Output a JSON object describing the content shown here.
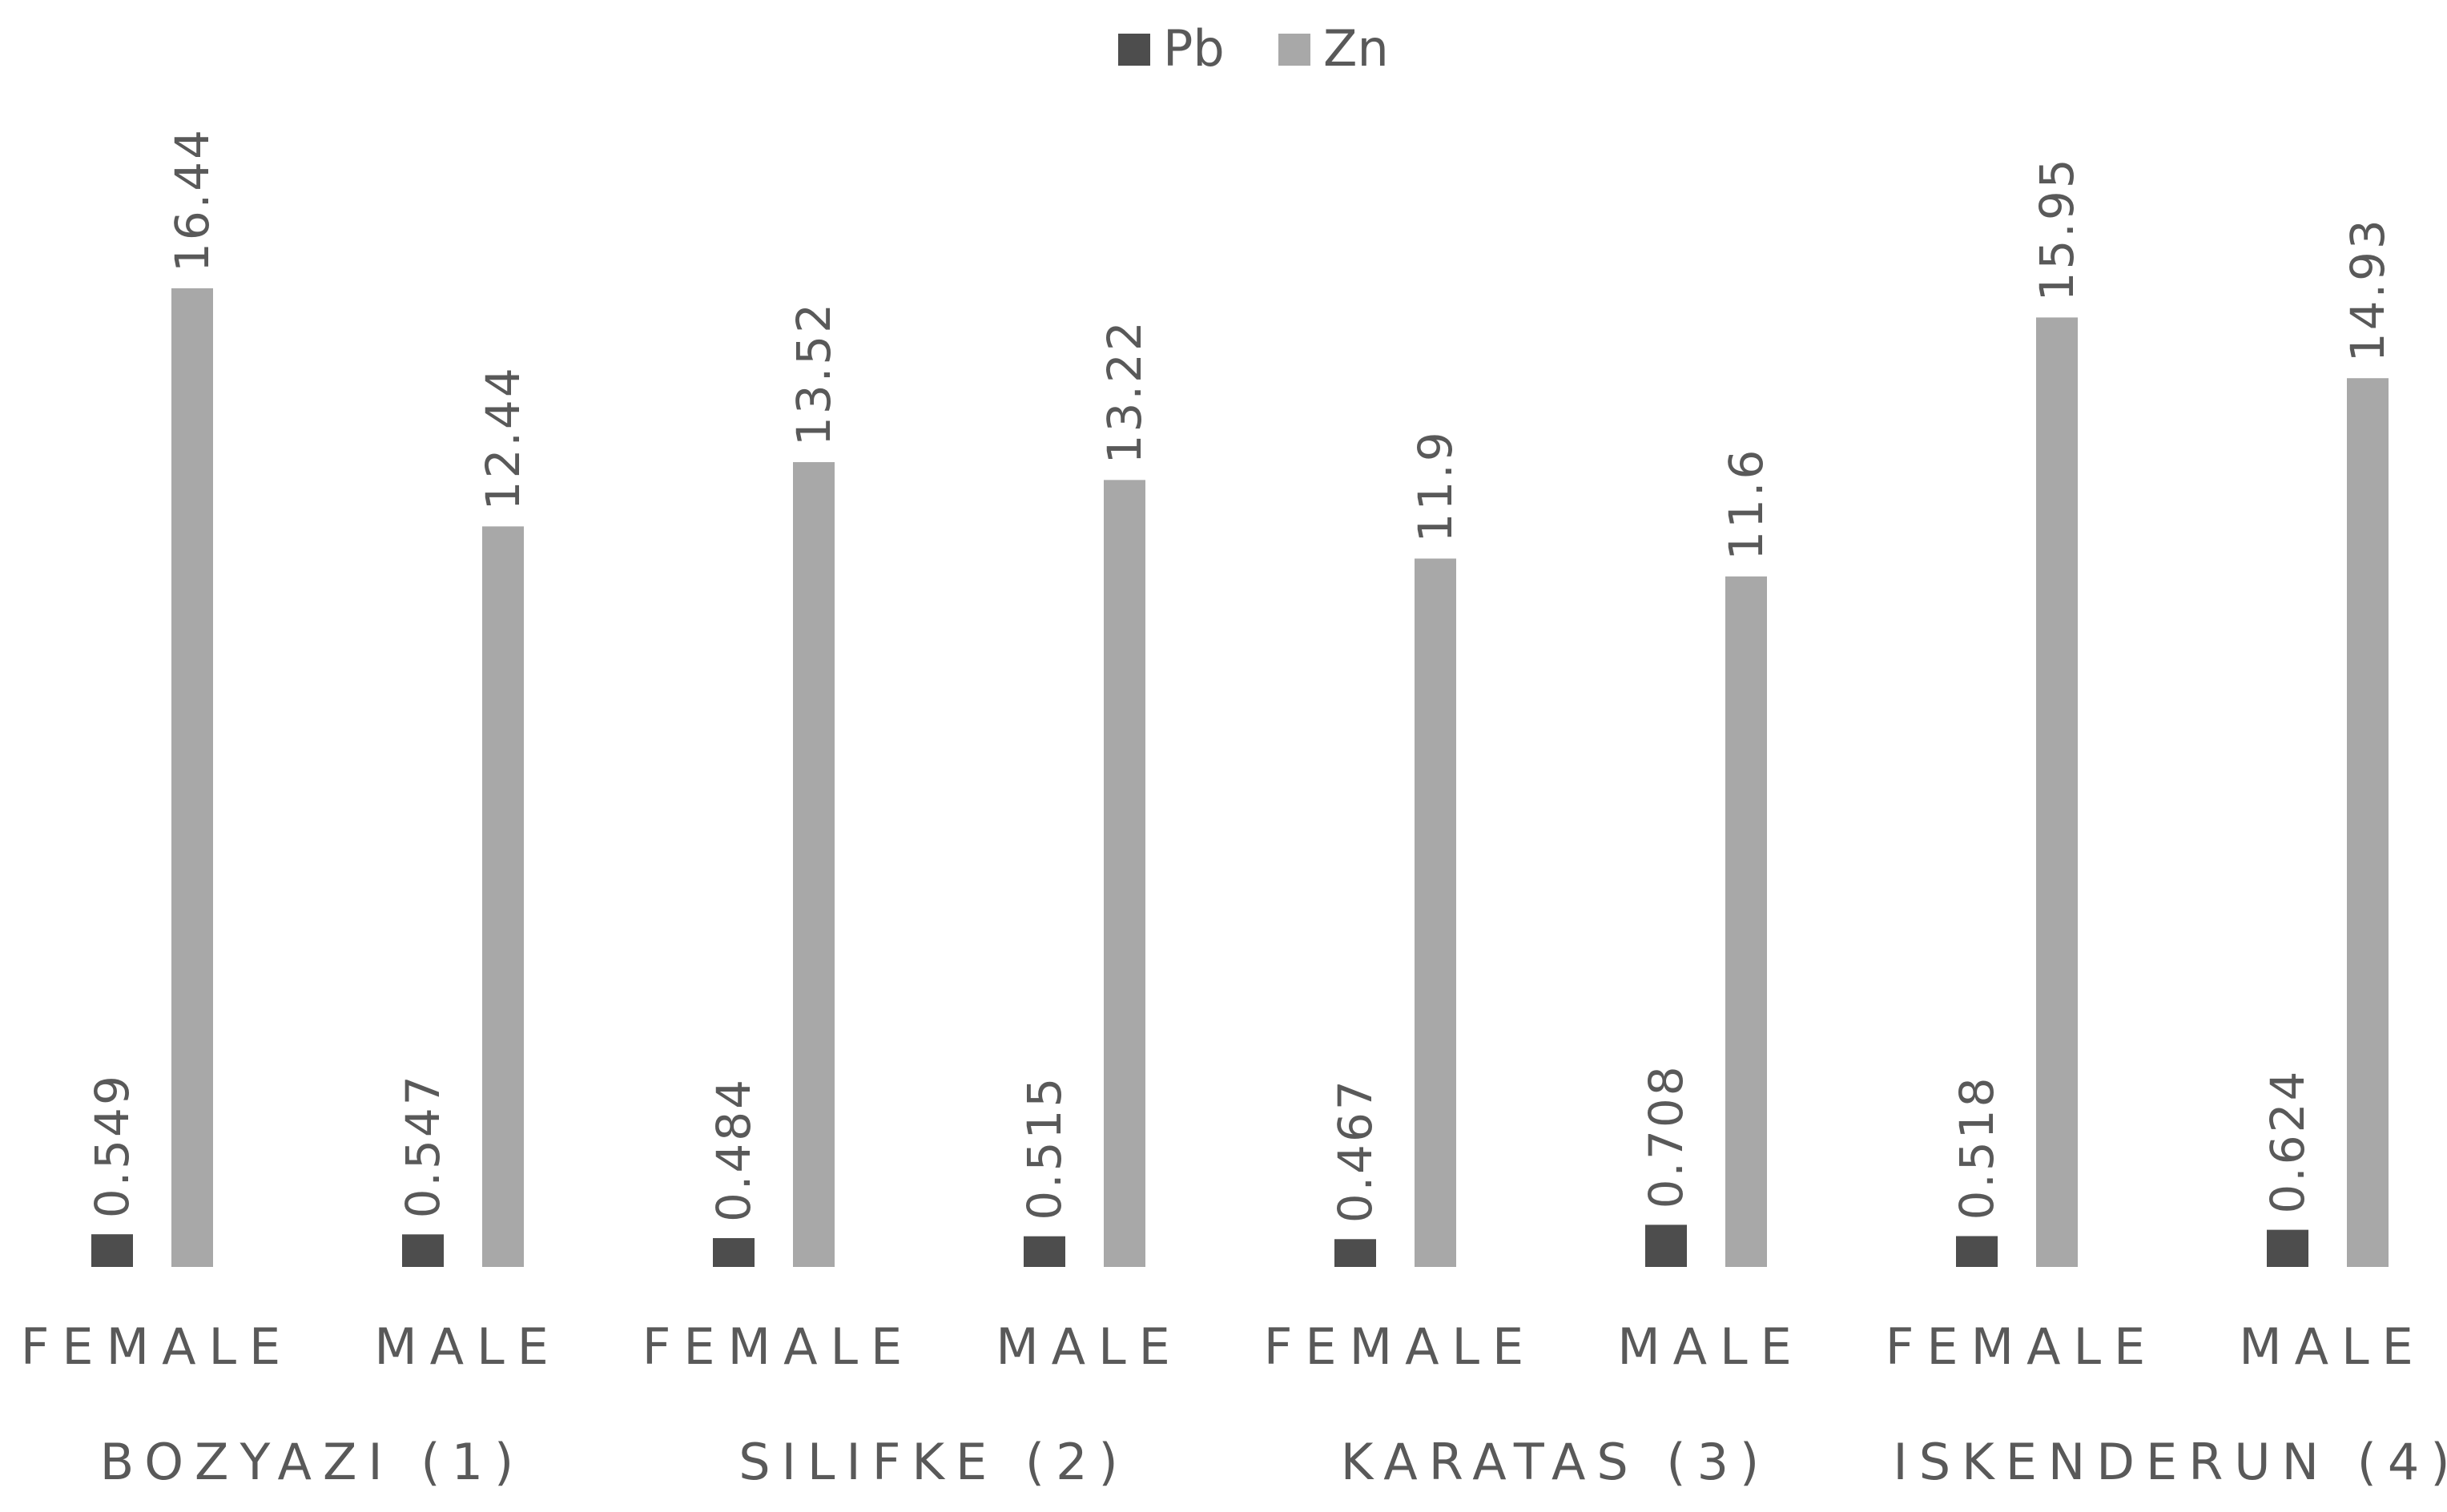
{
  "chart_data": {
    "type": "bar",
    "categories": [
      "FEMALE",
      "MALE",
      "FEMALE",
      "MALE",
      "FEMALE",
      "MALE",
      "FEMALE",
      "MALE"
    ],
    "groups": [
      "BOZYAZI (1)",
      "SILIFKE (2)",
      "KARATAS (3)",
      "ISKENDERUN (4)"
    ],
    "series": [
      {
        "name": "Pb",
        "color": "#4d4d4d",
        "values": [
          0.549,
          0.547,
          0.484,
          0.515,
          0.467,
          0.708,
          0.518,
          0.624
        ],
        "labels": [
          "0.549",
          "0.547",
          "0.484",
          "0.515",
          "0.467",
          "0.708",
          "0.518",
          "0.624"
        ]
      },
      {
        "name": "Zn",
        "color": "#a8a8a8",
        "values": [
          16.44,
          12.44,
          13.52,
          13.22,
          11.9,
          11.6,
          15.95,
          14.93
        ],
        "labels": [
          "16.44",
          "12.44",
          "13.52",
          "13.22",
          "11.9",
          "11.6",
          "15.95",
          "14.93"
        ]
      }
    ],
    "ylim": [
      0,
      16.44
    ],
    "grid": false,
    "legend_position": "top-center",
    "data_labels": "rotated-vertical"
  }
}
